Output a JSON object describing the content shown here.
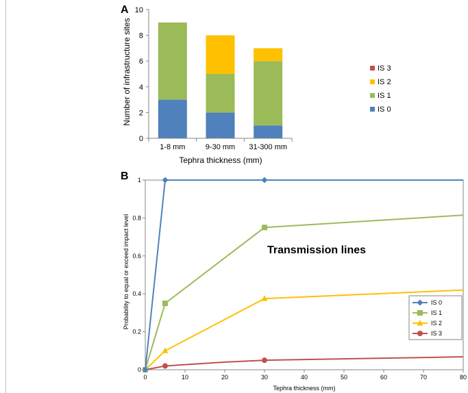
{
  "chart_data": [
    {
      "panel": "A",
      "type": "bar",
      "stacked": true,
      "categories": [
        "1-8 mm",
        "9-30 mm",
        "31-300 mm"
      ],
      "series": [
        {
          "name": "IS 0",
          "values": [
            3,
            2,
            1
          ],
          "color": "#4f81bd"
        },
        {
          "name": "IS 1",
          "values": [
            6,
            3,
            5
          ],
          "color": "#9bbb59"
        },
        {
          "name": "IS 2",
          "values": [
            0,
            3,
            1
          ],
          "color": "#ffc000"
        },
        {
          "name": "IS 3",
          "values": [
            0,
            0,
            0
          ],
          "color": "#c0504d"
        }
      ],
      "legend_order": [
        "IS 3",
        "IS 2",
        "IS 1",
        "IS 0"
      ],
      "xlabel": "Tephra thickness (mm)",
      "ylabel": "Number of infrastructure sites",
      "ylim": [
        0,
        10
      ],
      "yticks": [
        "0",
        "2",
        "4",
        "6",
        "8",
        "10"
      ],
      "legend_position": "right"
    },
    {
      "panel": "B",
      "type": "line",
      "annotation": "Transmission lines",
      "series": [
        {
          "name": "IS 0",
          "color": "#4f81bd",
          "marker": "diamond",
          "x": [
            0,
            5,
            30,
            80
          ],
          "y": [
            0,
            1,
            1,
            1
          ],
          "marker_x": [
            0,
            5,
            30
          ]
        },
        {
          "name": "IS 1",
          "color": "#9bbb59",
          "marker": "square",
          "x": [
            0,
            5,
            30,
            80
          ],
          "y": [
            0,
            0.35,
            0.75,
            0.815
          ],
          "marker_x": [
            0,
            5,
            30
          ]
        },
        {
          "name": "IS 2",
          "color": "#ffc000",
          "marker": "triangle",
          "x": [
            0,
            5,
            30,
            80
          ],
          "y": [
            0,
            0.1,
            0.375,
            0.42
          ],
          "marker_x": [
            0,
            5,
            30
          ]
        },
        {
          "name": "IS 3",
          "color": "#c0504d",
          "marker": "circle",
          "x": [
            0,
            5,
            20,
            30,
            80
          ],
          "y": [
            0,
            0.02,
            0.04,
            0.05,
            0.068
          ],
          "marker_x": [
            0,
            5,
            30
          ]
        }
      ],
      "xlabel": "Tephra thickness (mm)",
      "ylabel": "Probability to equal or exceed impact level",
      "xlim": [
        0,
        80
      ],
      "ylim": [
        0,
        1
      ],
      "xticks": [
        "0",
        "10",
        "20",
        "30",
        "40",
        "50",
        "60",
        "70",
        "80"
      ],
      "yticks": [
        "0",
        "0.2",
        "0.4",
        "0.6",
        "0.8",
        "1"
      ],
      "legend_position": "bottom-right"
    }
  ]
}
